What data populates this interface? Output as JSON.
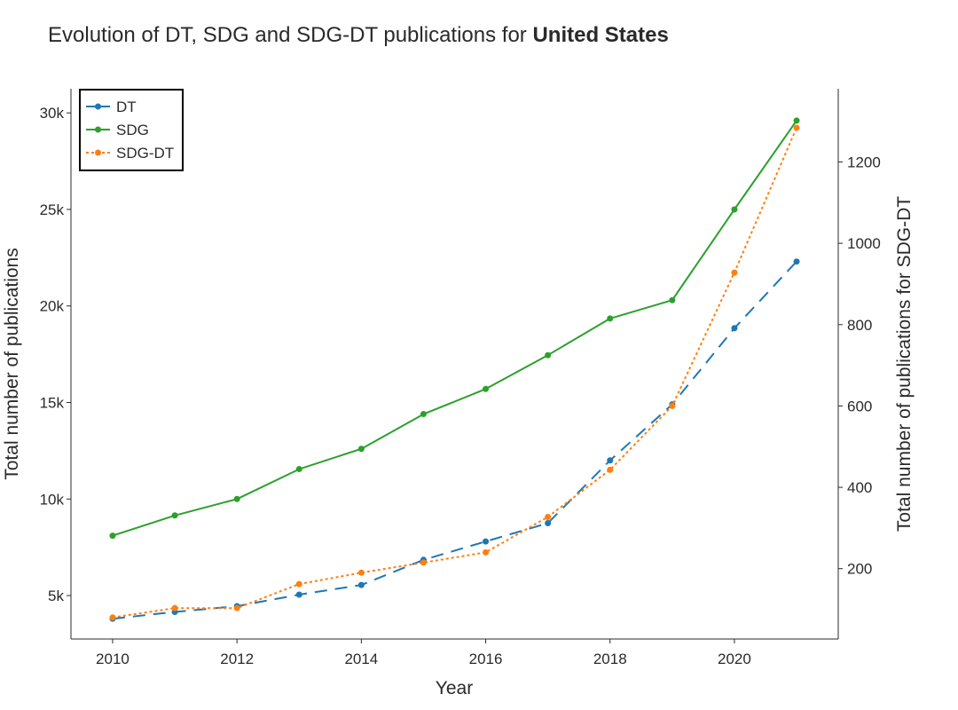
{
  "chart_data": {
    "type": "line",
    "title": "Evolution of DT, SDG and SDG-DT publications for",
    "title_bold": "United States",
    "xlabel": "Year",
    "ylabel": "Total number of publications",
    "y2label": "Total number of publications for SDG-DT",
    "x": [
      2010,
      2011,
      2012,
      2013,
      2014,
      2015,
      2016,
      2017,
      2018,
      2019,
      2020,
      2021
    ],
    "xlim": [
      2009.33,
      2021.67
    ],
    "ylim": [
      2750,
      31250
    ],
    "y2lim": [
      27,
      1380
    ],
    "x_ticks": [
      2010,
      2012,
      2014,
      2016,
      2018,
      2020
    ],
    "x_tick_labels": [
      "2010",
      "2012",
      "2014",
      "2016",
      "2018",
      "2020"
    ],
    "y_ticks": [
      5000,
      10000,
      15000,
      20000,
      25000,
      30000
    ],
    "y_tick_labels": [
      "5k",
      "10k",
      "15k",
      "20k",
      "25k",
      "30k"
    ],
    "y2_ticks": [
      200,
      400,
      600,
      800,
      1000,
      1200
    ],
    "y2_tick_labels": [
      "200",
      "400",
      "600",
      "800",
      "1000",
      "1200"
    ],
    "grid": false,
    "legend_position": "top-left",
    "series": [
      {
        "name": "DT",
        "axis": "left",
        "color": "#1f77b4",
        "dash": "long-dash",
        "values": [
          3800,
          4150,
          4450,
          5050,
          5550,
          6850,
          7800,
          8750,
          12000,
          14900,
          18850,
          22300
        ]
      },
      {
        "name": "SDG",
        "axis": "left",
        "color": "#2ca02c",
        "dash": "solid",
        "values": [
          8100,
          9150,
          10000,
          11550,
          12600,
          14400,
          15700,
          17450,
          19350,
          20300,
          25000,
          29600
        ]
      },
      {
        "name": "SDG-DT",
        "axis": "right",
        "color": "#ff7f0e",
        "dash": "dotted",
        "values": [
          80,
          103,
          103,
          162,
          190,
          215,
          240,
          327,
          443,
          600,
          928,
          1284
        ]
      }
    ]
  }
}
